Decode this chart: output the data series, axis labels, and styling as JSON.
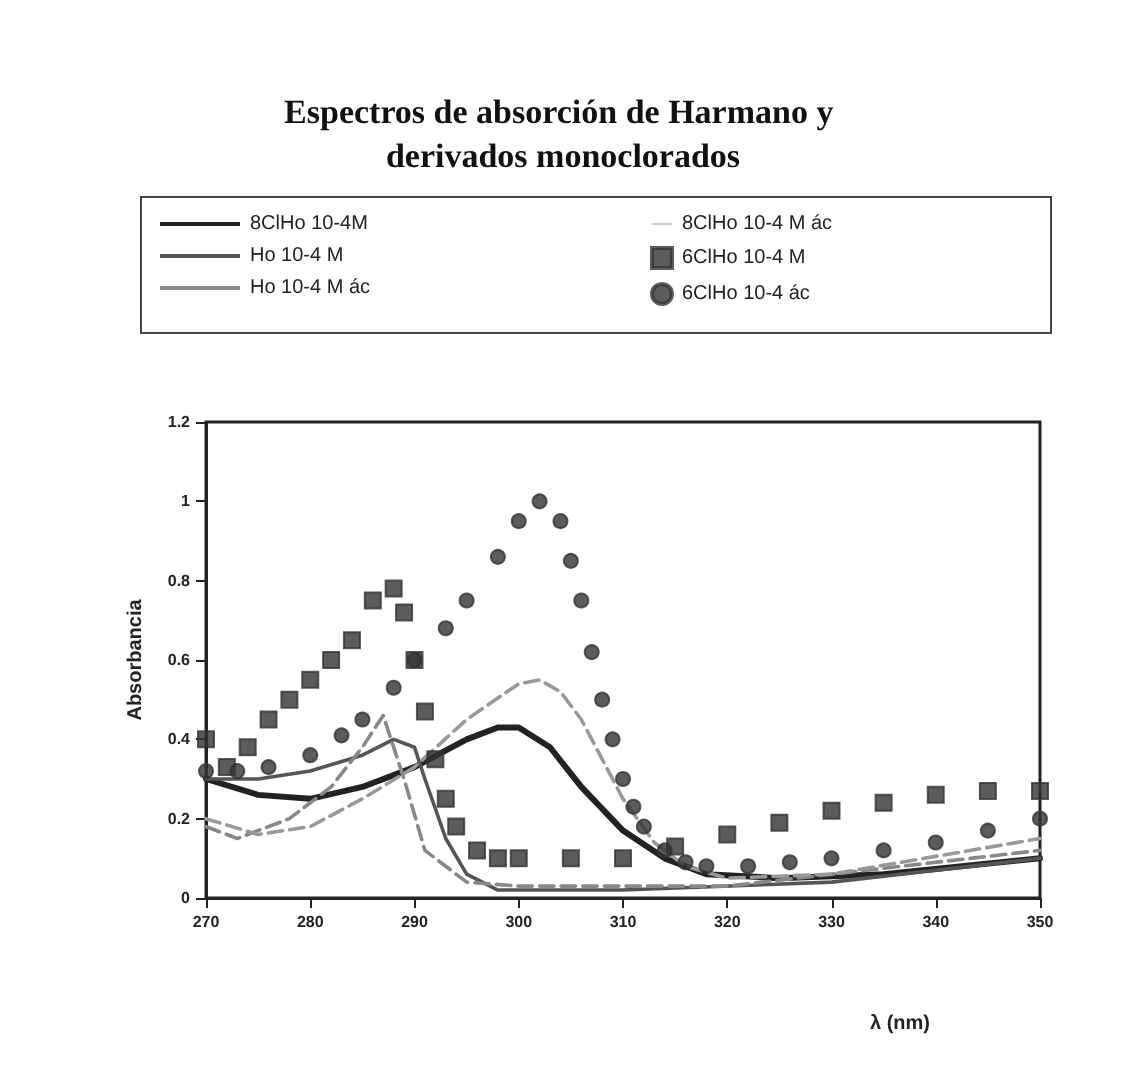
{
  "chart_data": {
    "type": "line",
    "title": "Espectros de absorción de Harmano y derivados monoclorados",
    "xlabel": "λ (nm)",
    "ylabel": "Absorbancia",
    "xlim": [
      270,
      350
    ],
    "xticks": [
      270,
      280,
      290,
      300,
      310,
      320,
      330,
      340,
      350
    ],
    "ylim": [
      0,
      1.2
    ],
    "yticks": [
      0,
      0.2,
      0.4,
      0.6,
      0.8,
      1,
      1.2
    ],
    "grid": false,
    "legend": "top",
    "series": [
      {
        "name": "8ClHo 10-4M",
        "type": "line",
        "line_style": "solid",
        "color": "#222222",
        "x": [
          270,
          275,
          280,
          285,
          290,
          295,
          298,
          300,
          303,
          306,
          310,
          314,
          318,
          325,
          335,
          350
        ],
        "values": [
          0.3,
          0.26,
          0.25,
          0.28,
          0.33,
          0.4,
          0.43,
          0.43,
          0.38,
          0.28,
          0.17,
          0.1,
          0.06,
          0.05,
          0.06,
          0.1
        ]
      },
      {
        "name": "Ho 10-4 M",
        "type": "line",
        "line_style": "solid",
        "color": "#555555",
        "x": [
          270,
          275,
          280,
          285,
          288,
          290,
          291,
          293,
          295,
          298,
          310,
          330,
          350
        ],
        "values": [
          0.3,
          0.3,
          0.32,
          0.36,
          0.4,
          0.38,
          0.3,
          0.15,
          0.06,
          0.02,
          0.02,
          0.04,
          0.1
        ]
      },
      {
        "name": "Ho 10-4 M ác",
        "type": "line",
        "line_style": "dashed",
        "color": "#888888",
        "x": [
          270,
          273,
          278,
          282,
          285,
          287,
          289,
          291,
          295,
          300,
          320,
          350
        ],
        "values": [
          0.18,
          0.15,
          0.2,
          0.28,
          0.38,
          0.46,
          0.3,
          0.12,
          0.04,
          0.03,
          0.03,
          0.12
        ]
      },
      {
        "name": "8ClHo 10-4 M ác",
        "type": "line",
        "line_style": "dashed",
        "color": "#999999",
        "x": [
          270,
          275,
          280,
          285,
          290,
          295,
          300,
          302,
          304,
          306,
          308,
          310,
          313,
          316,
          320,
          330,
          350
        ],
        "values": [
          0.2,
          0.16,
          0.18,
          0.25,
          0.33,
          0.45,
          0.54,
          0.55,
          0.52,
          0.45,
          0.35,
          0.25,
          0.14,
          0.08,
          0.05,
          0.06,
          0.15
        ]
      },
      {
        "name": "6ClHo 10-4 M",
        "type": "scatter",
        "marker": "square",
        "color": "#333333",
        "x": [
          270,
          272,
          274,
          276,
          278,
          280,
          282,
          284,
          286,
          288,
          289,
          290,
          291,
          292,
          293,
          294,
          296,
          298,
          300,
          305,
          310,
          315,
          320,
          325,
          330,
          335,
          340,
          345,
          350
        ],
        "values": [
          0.4,
          0.33,
          0.38,
          0.45,
          0.5,
          0.55,
          0.6,
          0.65,
          0.75,
          0.78,
          0.72,
          0.6,
          0.47,
          0.35,
          0.25,
          0.18,
          0.12,
          0.1,
          0.1,
          0.1,
          0.1,
          0.13,
          0.16,
          0.19,
          0.22,
          0.24,
          0.26,
          0.27,
          0.27
        ]
      },
      {
        "name": "6ClHo 10-4 ác",
        "type": "scatter",
        "marker": "circle",
        "color": "#333333",
        "x": [
          270,
          273,
          276,
          280,
          283,
          285,
          288,
          290,
          293,
          295,
          298,
          300,
          302,
          304,
          305,
          306,
          307,
          308,
          309,
          310,
          311,
          312,
          314,
          316,
          318,
          322,
          326,
          330,
          335,
          340,
          345,
          350
        ],
        "values": [
          0.32,
          0.32,
          0.33,
          0.36,
          0.41,
          0.45,
          0.53,
          0.6,
          0.68,
          0.75,
          0.86,
          0.95,
          1,
          0.95,
          0.85,
          0.75,
          0.62,
          0.5,
          0.4,
          0.3,
          0.23,
          0.18,
          0.12,
          0.09,
          0.08,
          0.08,
          0.09,
          0.1,
          0.12,
          0.14,
          0.17,
          0.2
        ]
      }
    ]
  }
}
